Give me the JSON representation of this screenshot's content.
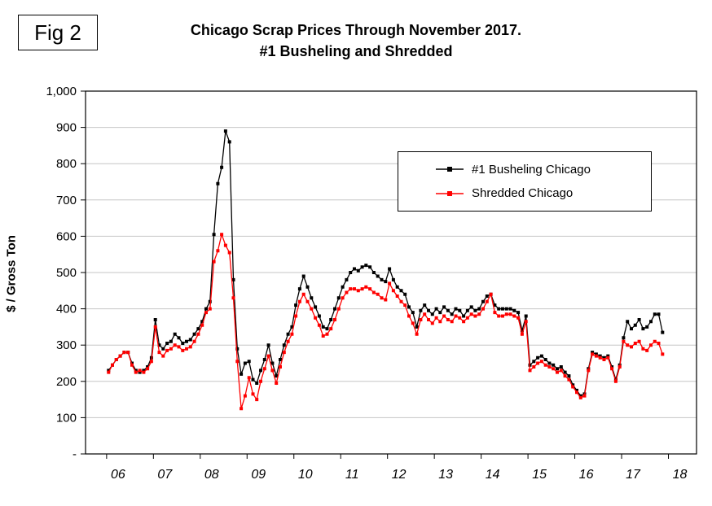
{
  "fig_label": "Fig 2",
  "title": {
    "line1": "Chicago Scrap Prices Through November 2017.",
    "line2": "#1 Busheling and Shredded"
  },
  "y_axis_title": "$ / Gross Ton",
  "chart_data": {
    "type": "line",
    "title": "Chicago Scrap Prices Through November 2017. #1 Busheling and Shredded",
    "xlabel": "",
    "ylabel": "$ / Gross Ton",
    "x_min": 2005.55,
    "x_max": 2018.6,
    "y_min": 0,
    "y_max": 1000,
    "grid": "horizontal",
    "legend_position": "upper-right-inside",
    "frequency": "monthly",
    "start_year": 2006,
    "end_label": "November 2017",
    "x_ticks": [
      {
        "v": 2006,
        "label": "06"
      },
      {
        "v": 2007,
        "label": "07"
      },
      {
        "v": 2008,
        "label": "08"
      },
      {
        "v": 2009,
        "label": "09"
      },
      {
        "v": 2010,
        "label": "10"
      },
      {
        "v": 2011,
        "label": "11"
      },
      {
        "v": 2012,
        "label": "12"
      },
      {
        "v": 2013,
        "label": "13"
      },
      {
        "v": 2014,
        "label": "14"
      },
      {
        "v": 2015,
        "label": "15"
      },
      {
        "v": 2016,
        "label": "16"
      },
      {
        "v": 2017,
        "label": "17"
      },
      {
        "v": 2018,
        "label": "18"
      }
    ],
    "y_ticks": [
      {
        "v": 1000,
        "label": "1,000"
      },
      {
        "v": 900,
        "label": "900"
      },
      {
        "v": 800,
        "label": "800"
      },
      {
        "v": 700,
        "label": "700"
      },
      {
        "v": 600,
        "label": "600"
      },
      {
        "v": 500,
        "label": "500"
      },
      {
        "v": 400,
        "label": "400"
      },
      {
        "v": 300,
        "label": "300"
      },
      {
        "v": 200,
        "label": "200"
      },
      {
        "v": 100,
        "label": "100"
      },
      {
        "v": 0,
        "label": "-"
      }
    ],
    "series": [
      {
        "name": "#1 Busheling Chicago",
        "color": "#000000",
        "marker": "square",
        "values": [
          230,
          245,
          260,
          270,
          280,
          280,
          250,
          230,
          225,
          230,
          240,
          265,
          370,
          300,
          290,
          305,
          310,
          330,
          320,
          305,
          310,
          315,
          330,
          345,
          365,
          400,
          420,
          605,
          745,
          790,
          890,
          860,
          480,
          290,
          220,
          250,
          255,
          205,
          195,
          230,
          260,
          300,
          250,
          215,
          260,
          300,
          330,
          350,
          410,
          455,
          490,
          460,
          430,
          405,
          380,
          350,
          345,
          370,
          400,
          430,
          460,
          480,
          500,
          510,
          505,
          515,
          520,
          515,
          500,
          490,
          480,
          475,
          510,
          480,
          460,
          450,
          440,
          405,
          390,
          350,
          395,
          410,
          395,
          385,
          400,
          390,
          405,
          395,
          385,
          400,
          395,
          380,
          395,
          405,
          395,
          400,
          420,
          435,
          440,
          410,
          400,
          400,
          400,
          400,
          395,
          390,
          340,
          380,
          245,
          255,
          265,
          270,
          260,
          250,
          245,
          235,
          240,
          225,
          215,
          190,
          175,
          160,
          165,
          235,
          280,
          275,
          270,
          265,
          270,
          240,
          205,
          245,
          320,
          365,
          345,
          355,
          370,
          345,
          350,
          365,
          385,
          385,
          335
        ]
      },
      {
        "name": "Shredded Chicago",
        "color": "#ff0000",
        "marker": "square",
        "values": [
          225,
          245,
          260,
          270,
          280,
          280,
          245,
          225,
          230,
          225,
          235,
          255,
          350,
          280,
          270,
          285,
          290,
          300,
          295,
          285,
          290,
          295,
          310,
          330,
          355,
          390,
          400,
          530,
          560,
          605,
          575,
          555,
          430,
          255,
          125,
          160,
          210,
          165,
          150,
          200,
          235,
          270,
          230,
          195,
          240,
          280,
          310,
          330,
          380,
          420,
          440,
          420,
          400,
          375,
          355,
          325,
          330,
          345,
          370,
          400,
          430,
          445,
          455,
          455,
          450,
          455,
          460,
          455,
          445,
          440,
          430,
          425,
          470,
          450,
          435,
          420,
          410,
          380,
          360,
          330,
          370,
          385,
          370,
          360,
          375,
          365,
          380,
          370,
          365,
          380,
          375,
          365,
          375,
          385,
          380,
          385,
          400,
          420,
          440,
          390,
          380,
          380,
          385,
          385,
          380,
          375,
          330,
          365,
          230,
          240,
          250,
          255,
          245,
          240,
          235,
          225,
          230,
          215,
          205,
          185,
          170,
          155,
          160,
          230,
          275,
          270,
          265,
          260,
          265,
          235,
          200,
          240,
          310,
          300,
          295,
          305,
          310,
          290,
          285,
          300,
          310,
          305,
          275
        ]
      }
    ]
  }
}
